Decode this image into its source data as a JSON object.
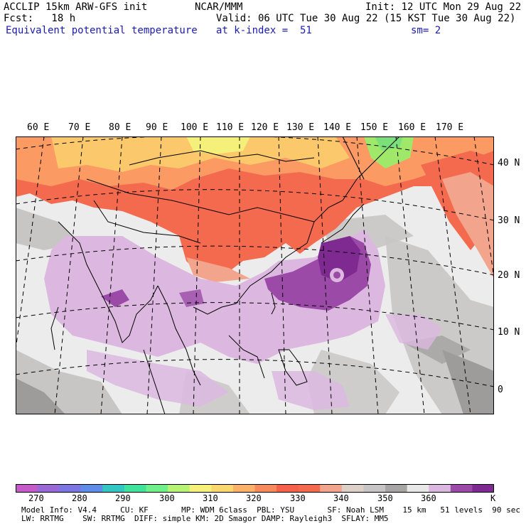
{
  "header": {
    "model_line": "ACCLIP 15km ARW-GFS init",
    "org": "NCAR/MMM",
    "init": "Init: 12 UTC Mon 29 Aug 22",
    "fcst": "Fcst:   18 h",
    "valid": "Valid: 06 UTC Tue 30 Aug 22 (15 KST Tue 30 Aug 22)",
    "field": "Equivalent potential temperature",
    "level": "at k-index =  51",
    "smooth": "sm= 2"
  },
  "map": {
    "lon_labels": [
      "60 E",
      "70 E",
      "80 E",
      "90 E",
      "100 E",
      "110 E",
      "120 E",
      "130 E",
      "140 E",
      "150 E",
      "160 E",
      "170 E"
    ],
    "lat_labels": [
      "40 N",
      "30 N",
      "20 N",
      "10 N",
      "0"
    ],
    "colors": {
      "ocean": "#ececec",
      "grey_mid": "#c8c6c4",
      "grey_dark": "#9e9c9a",
      "lilac": "#dcb8e0",
      "purple": "#9b4aa8",
      "purple_dark": "#7e2a90",
      "salmon": "#f4a58a",
      "red": "#f46a4e",
      "orange": "#fb9a63",
      "yellow_orange": "#fbc86b",
      "yellow": "#f5f07a",
      "green": "#9fe86a"
    }
  },
  "colorbar": {
    "unit": "K",
    "labels": [
      "270",
      "280",
      "290",
      "300",
      "310",
      "320",
      "330",
      "340",
      "350",
      "360"
    ],
    "colors": [
      "#c45bc9",
      "#9a69d7",
      "#7c76e3",
      "#5f8ce8",
      "#34c6c2",
      "#3fe39b",
      "#6ff08a",
      "#b7f476",
      "#f5f17b",
      "#fbd86f",
      "#fbb268",
      "#f78a5d",
      "#f4604a",
      "#f46a4e",
      "#f2a58c",
      "#ddd0c6",
      "#c8c6c4",
      "#a8a6a4",
      "#e8e8e8",
      "#dcb8e0",
      "#9b4aa8",
      "#7e2a90"
    ]
  },
  "footer": {
    "line1": "Model Info: V4.4     CU: KF       MP: WDM 6class  PBL: YSU       SF: Noah LSM    15 km   51 levels  90 sec",
    "line2": "LW: RRTMG    SW: RRTMG  DIFF: simple KM: 2D Smagor DAMP: Rayleigh3  SFLAY: MM5"
  }
}
